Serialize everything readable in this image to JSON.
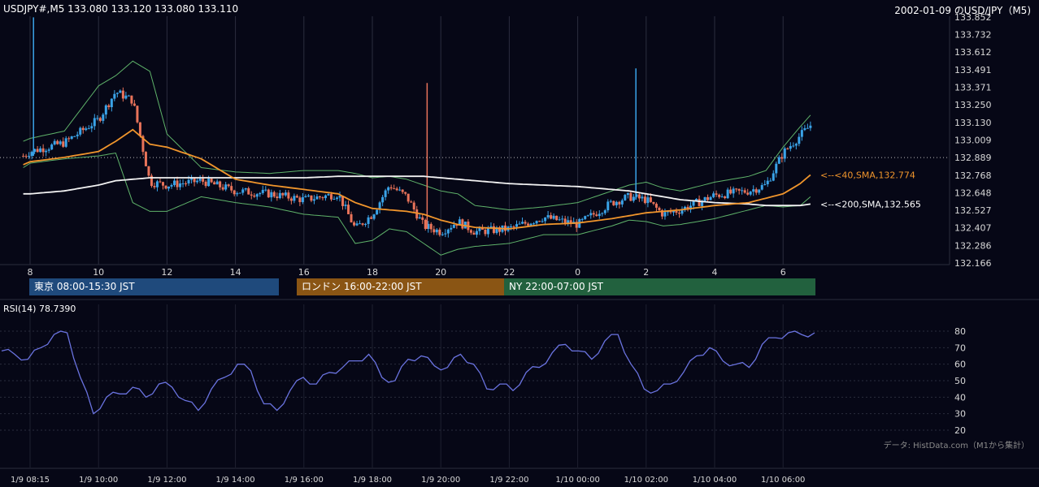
{
  "header": {
    "symbol_line": "USDJPY#,M5 133.080 133.120 133.080 133.110",
    "title": "2002-01-09 のUSD/JPY（M5)"
  },
  "colors": {
    "background": "#060716",
    "up_candle": "#3aa3e8",
    "down_candle": "#e8735a",
    "sma40": "#f0952c",
    "sma200": "#f2f2f2",
    "bollinger": "#5fb36a",
    "rsi": "#6a73e0",
    "session_tokyo": "#1f4a7c",
    "session_london": "#8a5514",
    "session_ny": "#22613e"
  },
  "price_axis": {
    "ticks": [
      "133.852",
      "133.732",
      "133.612",
      "133.491",
      "133.371",
      "133.250",
      "133.130",
      "133.009",
      "132.889",
      "132.768",
      "132.648",
      "132.527",
      "132.407",
      "132.286",
      "132.166"
    ],
    "min": 132.166,
    "max": 133.852,
    "reference_line": 132.889
  },
  "time_axis_top": [
    "8",
    "10",
    "12",
    "14",
    "16",
    "18",
    "20",
    "22",
    "0",
    "2",
    "4",
    "6"
  ],
  "time_axis_bottom": [
    "1/9 08:15",
    "1/9 10:00",
    "1/9 12:00",
    "1/9 14:00",
    "1/9 16:00",
    "1/9 18:00",
    "1/9 20:00",
    "1/9 22:00",
    "1/10 00:00",
    "1/10 02:00",
    "1/10 04:00",
    "1/10 06:00"
  ],
  "sessions": [
    {
      "label": "東京 08:00-15:30 JST"
    },
    {
      "label": "ロンドン 16:00-22:00 JST"
    },
    {
      "label": "NY 22:00-07:00 JST"
    }
  ],
  "ma_labels": {
    "sma40": "<--<40,SMA,132.774",
    "sma200": "<--<200,SMA,132.565"
  },
  "rsi": {
    "label": "RSI(14) 78.7390",
    "ticks": [
      "80",
      "70",
      "60",
      "50",
      "40",
      "30",
      "20"
    ],
    "min": 20,
    "max": 80
  },
  "credit": "データ: HistData.com（M1から集計）",
  "chart_data": {
    "type": "candlestick",
    "hours": [
      7.8,
      8,
      9,
      10,
      10.5,
      11,
      11.5,
      12,
      13,
      14,
      15,
      16,
      17,
      17.5,
      18,
      18.5,
      19,
      19.5,
      20,
      20.5,
      21,
      22,
      23,
      0,
      1,
      1.5,
      2,
      2.5,
      3,
      4,
      5,
      5.5,
      6,
      6.5,
      6.8
    ],
    "close": [
      132.9,
      132.93,
      132.99,
      133.15,
      133.34,
      133.28,
      132.72,
      132.7,
      132.73,
      132.66,
      132.64,
      132.6,
      132.64,
      132.4,
      132.5,
      132.7,
      132.62,
      132.42,
      132.38,
      132.45,
      132.38,
      132.4,
      132.48,
      132.43,
      132.58,
      132.62,
      132.6,
      132.5,
      132.53,
      132.63,
      132.66,
      132.7,
      132.92,
      133.04,
      133.11
    ],
    "sma40": [
      132.84,
      132.86,
      132.89,
      132.93,
      133.0,
      133.08,
      132.98,
      132.96,
      132.88,
      132.74,
      132.7,
      132.67,
      132.64,
      132.58,
      132.54,
      132.53,
      132.52,
      132.5,
      132.46,
      132.43,
      132.41,
      132.4,
      132.43,
      132.44,
      132.47,
      132.49,
      132.51,
      132.52,
      132.53,
      132.56,
      132.58,
      132.61,
      132.64,
      132.71,
      132.77
    ],
    "sma200": [
      132.64,
      132.64,
      132.66,
      132.7,
      132.73,
      132.74,
      132.75,
      132.75,
      132.75,
      132.75,
      132.75,
      132.75,
      132.76,
      132.76,
      132.76,
      132.76,
      132.76,
      132.76,
      132.75,
      132.74,
      132.73,
      132.71,
      132.7,
      132.69,
      132.67,
      132.66,
      132.64,
      132.62,
      132.6,
      132.58,
      132.57,
      132.56,
      132.56,
      132.56,
      132.57
    ],
    "boll_upper": [
      133.0,
      133.02,
      133.07,
      133.38,
      133.45,
      133.55,
      133.48,
      133.05,
      132.82,
      132.79,
      132.78,
      132.8,
      132.8,
      132.78,
      132.75,
      132.76,
      132.74,
      132.7,
      132.66,
      132.64,
      132.56,
      132.53,
      132.55,
      132.58,
      132.66,
      132.7,
      132.72,
      132.68,
      132.66,
      132.72,
      132.76,
      132.8,
      132.96,
      133.1,
      133.18
    ],
    "boll_lower": [
      132.82,
      132.85,
      132.88,
      132.9,
      132.92,
      132.58,
      132.52,
      132.52,
      132.62,
      132.58,
      132.55,
      132.5,
      132.48,
      132.3,
      132.32,
      132.4,
      132.38,
      132.3,
      132.22,
      132.26,
      132.28,
      132.3,
      132.36,
      132.36,
      132.42,
      132.46,
      132.45,
      132.42,
      132.43,
      132.47,
      132.53,
      132.56,
      132.55,
      132.56,
      132.62
    ],
    "spikes": [
      {
        "hour": 8.1,
        "high": 133.85,
        "low": 132.9
      },
      {
        "hour": 19.6,
        "high": 133.4,
        "low": 132.4
      },
      {
        "hour": 1.7,
        "high": 133.5,
        "low": 132.6
      }
    ],
    "rsi_values": [
      68,
      66,
      63,
      70,
      78,
      79,
      52,
      30,
      40,
      42,
      46,
      40,
      48,
      46,
      38,
      32,
      45,
      52,
      60,
      56,
      36,
      32,
      44,
      52,
      48,
      55,
      58,
      62,
      66,
      52,
      50,
      63,
      65,
      59,
      58,
      66,
      60,
      45,
      48,
      44,
      55,
      58,
      67,
      72,
      68,
      63,
      74,
      78,
      60,
      45,
      44,
      48,
      55,
      65,
      70,
      62,
      60,
      58,
      72,
      76,
      79,
      78,
      79
    ]
  }
}
